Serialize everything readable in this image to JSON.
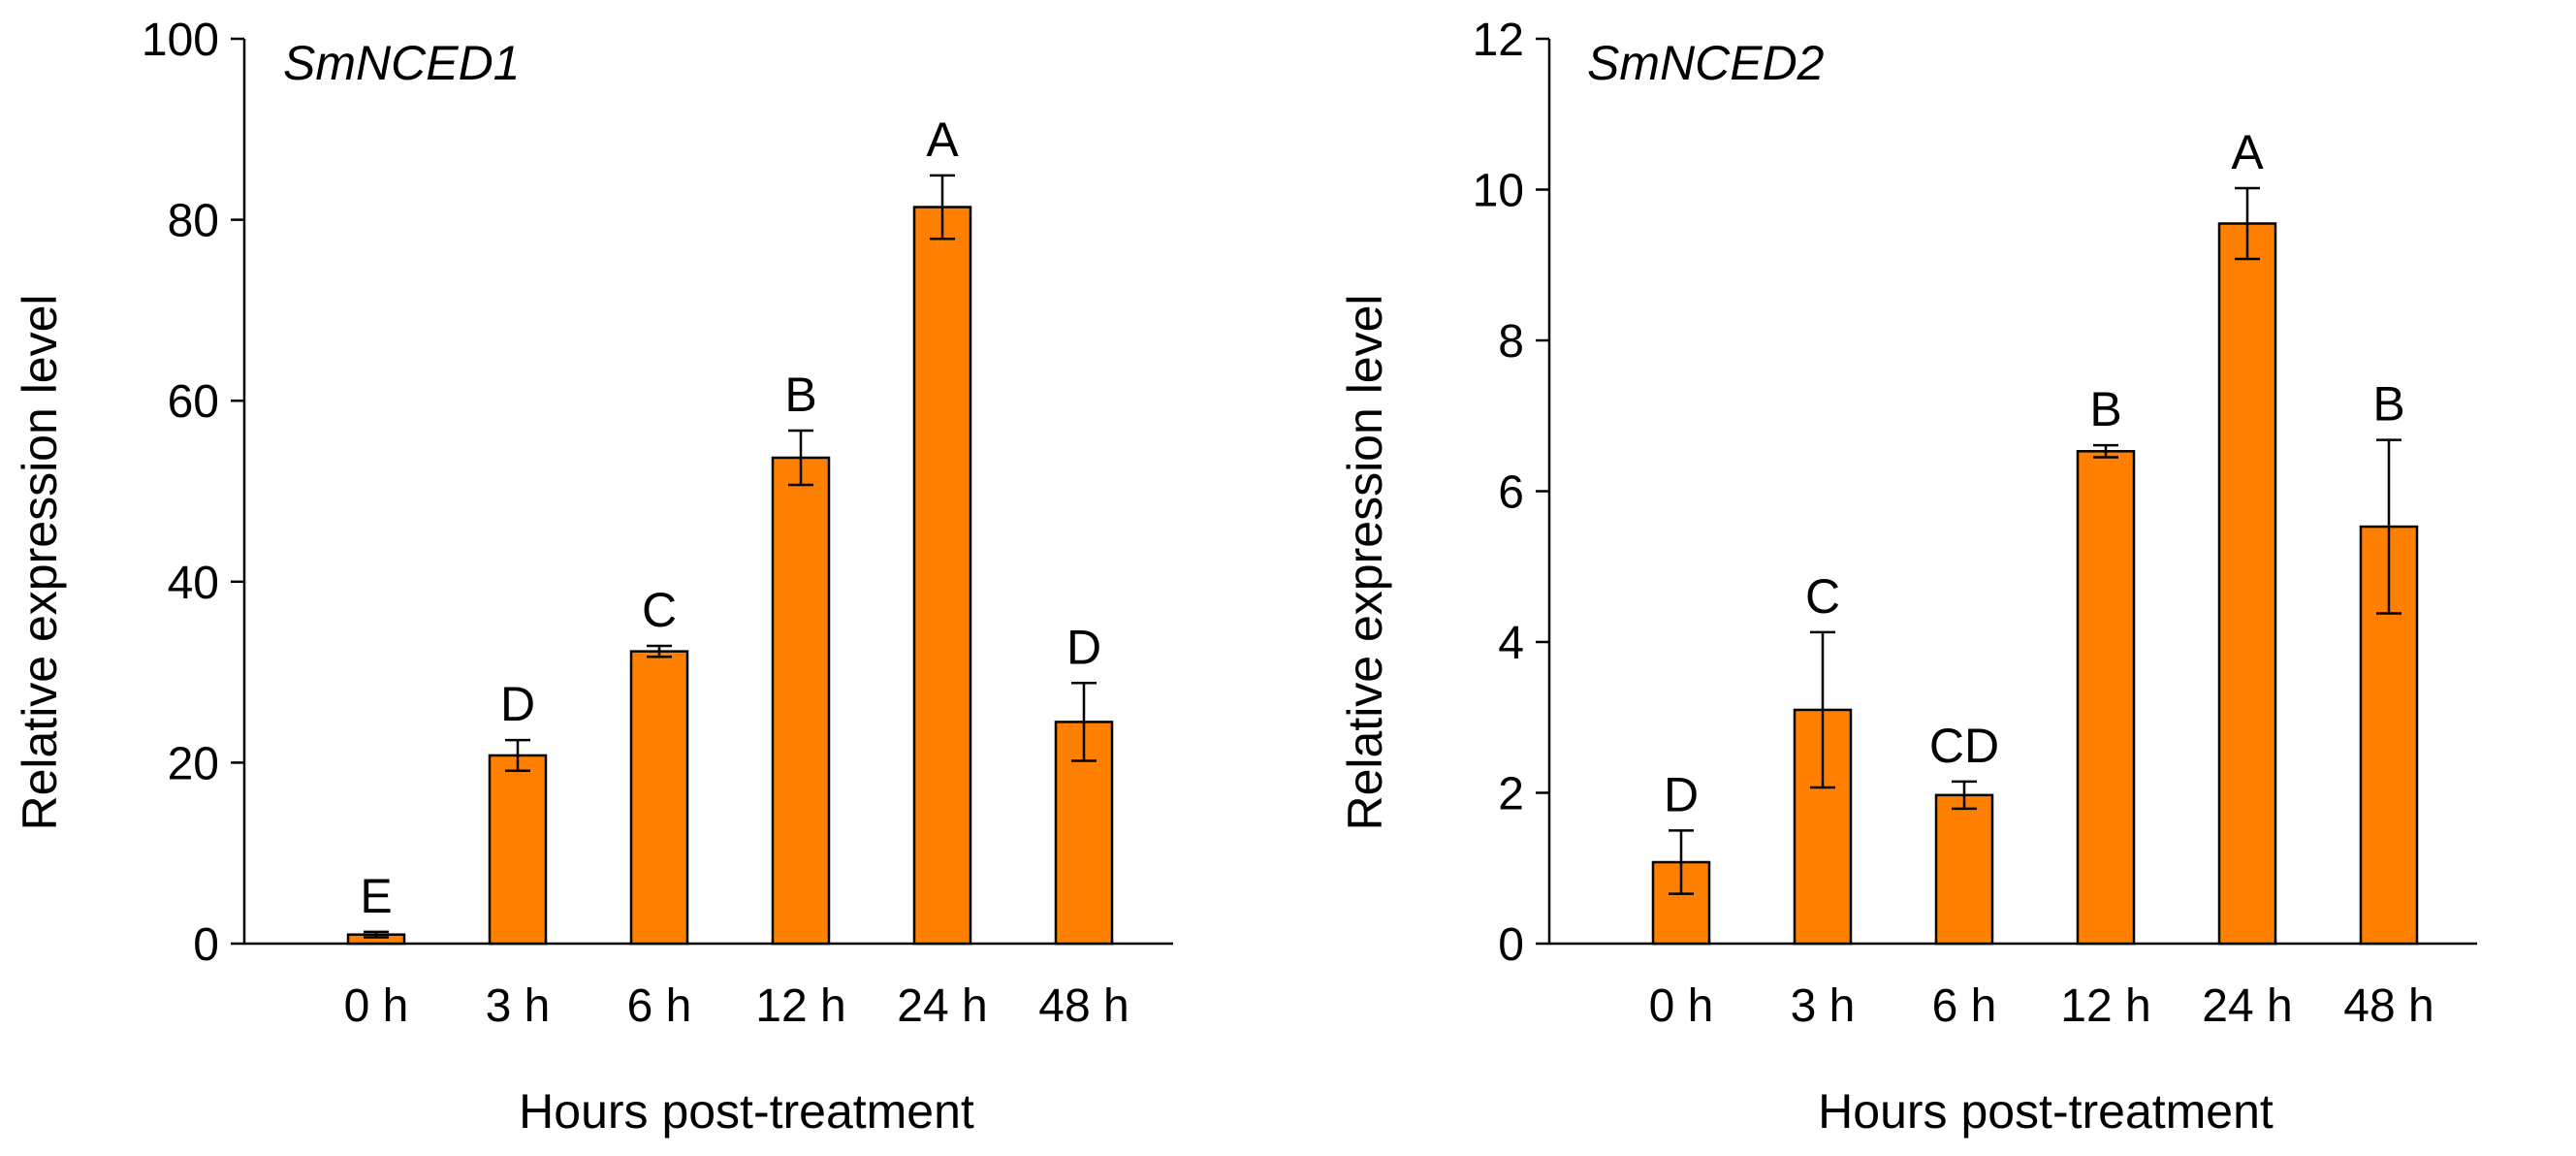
{
  "colors": {
    "bar": "#ff8000",
    "axis": "#000000"
  },
  "chart_data": [
    {
      "type": "bar",
      "title": "SmNCED1",
      "xlabel": "Hours post-treatment",
      "ylabel": "Relative expression level",
      "categories": [
        "0 h",
        "3 h",
        "6 h",
        "12 h",
        "24 h",
        "48 h"
      ],
      "values": [
        1.0,
        20.8,
        32.3,
        53.7,
        81.4,
        24.5
      ],
      "errors": [
        0.3,
        1.7,
        0.6,
        3.0,
        3.5,
        4.3
      ],
      "significance": [
        "E",
        "D",
        "C",
        "B",
        "A",
        "D"
      ],
      "ylim": [
        0,
        100
      ],
      "yticks": [
        "0",
        "20",
        "40",
        "60",
        "80",
        "100"
      ],
      "grid": false
    },
    {
      "type": "bar",
      "title": "SmNCED2",
      "xlabel": "Hours post-treatment",
      "ylabel": "Relative expression level",
      "categories": [
        "0 h",
        "3 h",
        "6 h",
        "12 h",
        "24 h",
        "48 h"
      ],
      "values": [
        1.08,
        3.1,
        1.97,
        6.53,
        9.55,
        5.53
      ],
      "errors": [
        0.42,
        1.03,
        0.18,
        0.08,
        0.47,
        1.15
      ],
      "significance": [
        "D",
        "C",
        "CD",
        "B",
        "A",
        "B"
      ],
      "ylim": [
        0,
        12
      ],
      "yticks": [
        "0",
        "2",
        "4",
        "6",
        "8",
        "10",
        "12"
      ],
      "grid": false
    }
  ]
}
